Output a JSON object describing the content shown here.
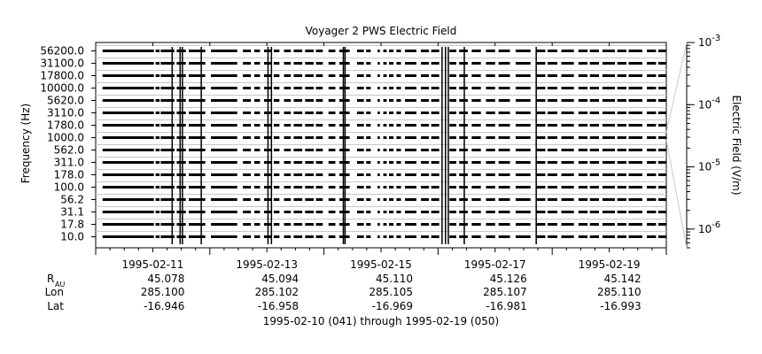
{
  "chart_data": {
    "type": "line",
    "title": "Voyager 2 PWS Electric Field",
    "ylabel": "Frequency (Hz)",
    "y2label": "Electric Field (V/m)",
    "footer_range": "1995-02-10 (041) through 1995-02-19 (050)",
    "row_labels": {
      "r_main": "R",
      "r_sub": "AU",
      "lon": "Lon",
      "lat": "Lat"
    },
    "frequency_channels": [
      "10.0",
      "17.8",
      "31.1",
      "56.2",
      "100.0",
      "178.0",
      "311.0",
      "562.0",
      "1000.0",
      "1780.0",
      "3110.0",
      "5620.0",
      "10000.0",
      "17800.0",
      "31100.0",
      "56200.0"
    ],
    "x_ticks": [
      "1995-02-11",
      "1995-02-13",
      "1995-02-15",
      "1995-02-17",
      "1995-02-19"
    ],
    "ephemeris": {
      "R_AU": [
        "45.078",
        "45.094",
        "45.110",
        "45.126",
        "45.142"
      ],
      "Lon": [
        "285.100",
        "285.102",
        "285.105",
        "285.107",
        "285.110"
      ],
      "Lat": [
        "-16.946",
        "-16.958",
        "-16.969",
        "-16.981",
        "-16.993"
      ]
    },
    "colorbar": {
      "scale": "log",
      "ylim": [
        5e-07,
        0.001
      ],
      "ticks": [
        {
          "value": 0.001,
          "base": "10",
          "exp": "-3"
        },
        {
          "value": 0.0001,
          "base": "10",
          "exp": "-4"
        },
        {
          "value": 1e-05,
          "base": "10",
          "exp": "-5"
        },
        {
          "value": 1e-06,
          "base": "10",
          "exp": "-6"
        }
      ]
    },
    "xlim_days": [
      0,
      10
    ],
    "data_segments_days": [
      [
        0.12,
        1.02
      ],
      [
        1.05,
        1.12
      ],
      [
        1.14,
        1.38
      ],
      [
        1.42,
        1.58
      ],
      [
        1.63,
        1.92
      ],
      [
        2.02,
        2.48
      ],
      [
        2.58,
        2.72
      ],
      [
        2.78,
        2.88
      ],
      [
        2.95,
        3.08
      ],
      [
        3.12,
        3.22
      ],
      [
        3.3,
        3.42
      ],
      [
        3.47,
        3.62
      ],
      [
        3.67,
        3.82
      ],
      [
        3.86,
        3.98
      ],
      [
        4.08,
        4.2
      ],
      [
        4.27,
        4.45
      ],
      [
        4.58,
        4.7
      ],
      [
        4.74,
        4.82
      ],
      [
        4.94,
        4.98
      ],
      [
        5.04,
        5.1
      ],
      [
        5.14,
        5.22
      ],
      [
        5.27,
        5.35
      ],
      [
        5.42,
        5.62
      ],
      [
        5.7,
        5.84
      ],
      [
        5.88,
        6.02
      ],
      [
        6.2,
        6.32
      ],
      [
        6.37,
        6.52
      ],
      [
        6.59,
        6.75
      ],
      [
        6.84,
        7.0
      ],
      [
        7.06,
        7.26
      ],
      [
        7.36,
        7.62
      ],
      [
        7.71,
        7.88
      ],
      [
        7.92,
        8.09
      ],
      [
        8.16,
        8.38
      ],
      [
        8.46,
        8.62
      ],
      [
        8.66,
        8.82
      ],
      [
        8.88,
        9.1
      ],
      [
        9.14,
        9.3
      ],
      [
        9.34,
        9.58
      ],
      [
        9.66,
        9.82
      ],
      [
        9.86,
        10.0
      ]
    ],
    "spike_events_days": [
      1.34,
      1.48,
      1.52,
      1.85,
      3.02,
      3.08,
      4.34,
      4.37,
      6.07,
      6.13,
      6.18,
      6.46,
      7.72
    ]
  }
}
